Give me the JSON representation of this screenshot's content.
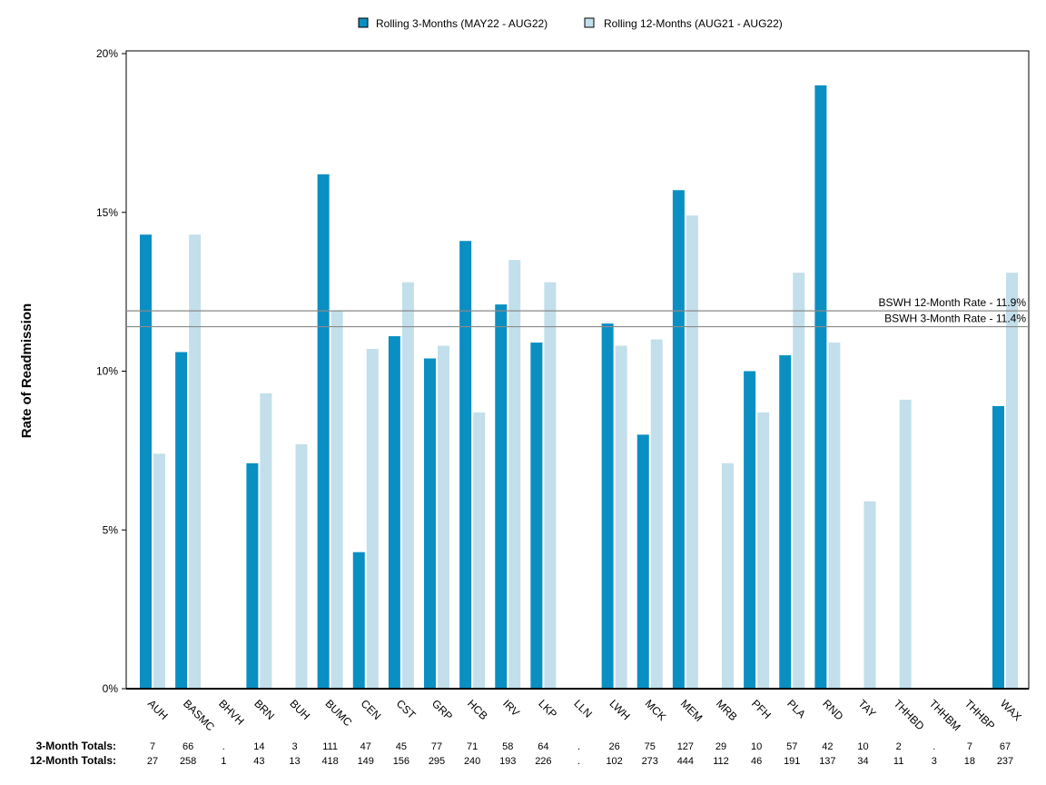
{
  "chart_data": {
    "type": "bar",
    "ylabel": "Rate of Readmission",
    "xlabel": "",
    "ylim": [
      0,
      20
    ],
    "yticks": [
      0,
      5,
      10,
      15,
      20
    ],
    "ytick_labels": [
      "0%",
      "5%",
      "10%",
      "15%",
      "20%"
    ],
    "legend_position": "top-center",
    "grid": false,
    "categories": [
      "AUH",
      "BASMC",
      "BHVH",
      "BRN",
      "BUH",
      "BUMC",
      "CEN",
      "CST",
      "GRP",
      "HCB",
      "IRV",
      "LKP",
      "LLN",
      "LWH",
      "MCK",
      "MEM",
      "MRB",
      "PFH",
      "PLA",
      "RND",
      "TAY",
      "THHBD",
      "THHBM",
      "THHBP",
      "WAX"
    ],
    "series": [
      {
        "name": "Rolling 3-Months (MAY22 - AUG22)",
        "color": "#0a8fc2",
        "values": [
          14.3,
          10.6,
          0,
          7.1,
          0,
          16.2,
          4.3,
          11.1,
          10.4,
          14.1,
          12.1,
          10.9,
          0,
          11.5,
          8.0,
          15.7,
          0,
          10.0,
          10.5,
          19.0,
          0,
          0,
          0,
          0,
          8.9
        ]
      },
      {
        "name": "Rolling 12-Months (AUG21 - AUG22)",
        "color": "#c2dfeb",
        "values": [
          7.4,
          14.3,
          0,
          9.3,
          7.7,
          11.9,
          10.7,
          12.8,
          10.8,
          8.7,
          13.5,
          12.8,
          0,
          10.8,
          11.0,
          14.9,
          7.1,
          8.7,
          13.1,
          10.9,
          5.9,
          9.1,
          0,
          0,
          13.1
        ]
      }
    ],
    "reference_lines": [
      {
        "label": "BSWH 12-Month Rate - 11.9%",
        "value": 11.9
      },
      {
        "label": "BSWH  3-Month Rate - 11.4%",
        "value": 11.4
      }
    ],
    "totals_table": {
      "row_labels": [
        "3-Month Totals:",
        "12-Month Totals:"
      ],
      "three_month": [
        "7",
        "66",
        ".",
        "14",
        "3",
        "111",
        "47",
        "45",
        "77",
        "71",
        "58",
        "64",
        ".",
        "26",
        "75",
        "127",
        "29",
        "10",
        "57",
        "42",
        "10",
        "2",
        ".",
        "7",
        "67"
      ],
      "twelve_month": [
        "27",
        "258",
        "1",
        "43",
        "13",
        "418",
        "149",
        "156",
        "295",
        "240",
        "193",
        "226",
        ".",
        "102",
        "273",
        "444",
        "112",
        "46",
        "191",
        "137",
        "34",
        "11",
        "3",
        "18",
        "237"
      ]
    }
  }
}
